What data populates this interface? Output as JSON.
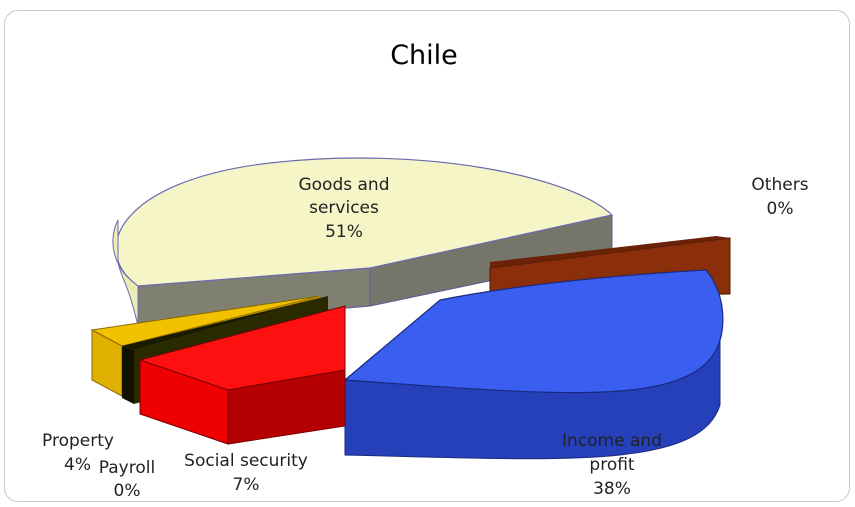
{
  "chart_data": {
    "type": "pie",
    "title": "Chile",
    "three_d": true,
    "exploded": true,
    "slices": [
      {
        "label_lines": [
          "Goods and",
          "services"
        ],
        "pct_label": "51%",
        "value": 51,
        "color": "#f5f5c8"
      },
      {
        "label_lines": [
          "Income and",
          "profit"
        ],
        "pct_label": "38%",
        "value": 38,
        "color": "#3a5ff0"
      },
      {
        "label_lines": [
          "Social security"
        ],
        "pct_label": "7%",
        "value": 7,
        "color": "#ff1010"
      },
      {
        "label_lines": [
          "Property"
        ],
        "pct_label": "4%",
        "value": 4,
        "color": "#f2c200"
      },
      {
        "label_lines": [
          "Payroll"
        ],
        "pct_label": "0%",
        "value": 0,
        "color": "#2a2a00"
      },
      {
        "label_lines": [
          "Others"
        ],
        "pct_label": "0%",
        "value": 0,
        "color": "#8b2e0a"
      }
    ]
  }
}
